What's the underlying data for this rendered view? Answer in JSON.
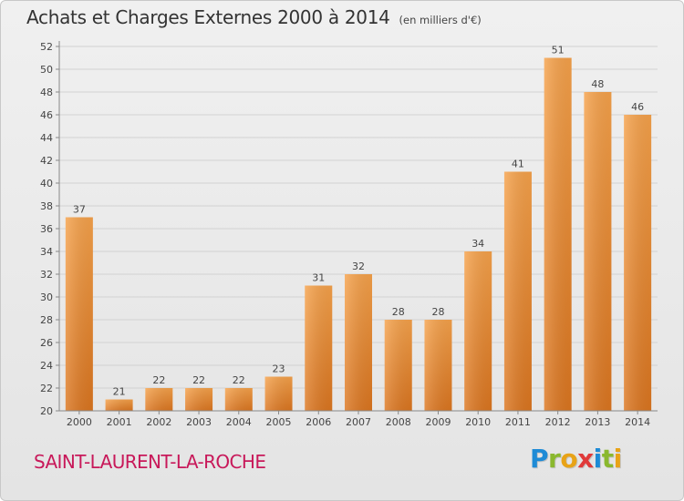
{
  "header": {
    "title": "Achats et Charges Externes 2000 à 2014",
    "unit": "(en milliers d'€)"
  },
  "footer": {
    "place_name": "SAINT-LAURENT-LA-ROCHE",
    "logo_text": "Proxiti",
    "logo_letters": [
      "P",
      "r",
      "o",
      "x",
      "i",
      "t",
      "i"
    ],
    "logo_colors": [
      "#1e8bd6",
      "#8ab82e",
      "#e8a317",
      "#e03a3a",
      "#1e8bd6",
      "#8ab82e",
      "#e8a317"
    ]
  },
  "colors": {
    "bar_light": "#f6a24b",
    "bar_dark": "#dc7620",
    "grid": "#d2d2d2",
    "text": "#444444",
    "place": "#c8195a"
  },
  "chart_data": {
    "type": "bar",
    "title": "Achats et Charges Externes 2000 à 2014",
    "subtitle": "(en milliers d'€)",
    "xlabel": "",
    "ylabel": "",
    "categories": [
      "2000",
      "2001",
      "2002",
      "2003",
      "2004",
      "2005",
      "2006",
      "2007",
      "2008",
      "2009",
      "2010",
      "2011",
      "2012",
      "2013",
      "2014"
    ],
    "values": [
      37,
      21,
      22,
      22,
      22,
      23,
      31,
      32,
      28,
      28,
      34,
      41,
      51,
      48,
      46
    ],
    "data_labels": [
      "37",
      "21",
      "22",
      "22",
      "22",
      "23",
      "31",
      "32",
      "28",
      "28",
      "34",
      "41",
      "51",
      "48",
      "46"
    ],
    "ylim": [
      20,
      52
    ],
    "yticks": [
      20,
      22,
      24,
      26,
      28,
      30,
      32,
      34,
      36,
      38,
      40,
      42,
      44,
      46,
      48,
      50,
      52
    ],
    "grid": true,
    "legend": "none"
  }
}
